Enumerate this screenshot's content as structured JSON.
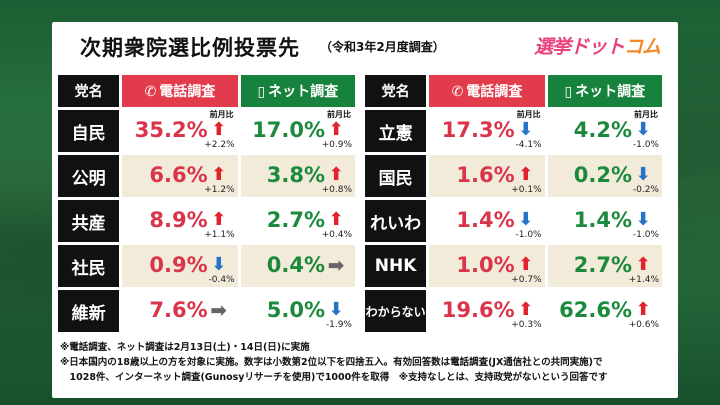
{
  "title": "次期衆院選比例投票先",
  "subtitle": "（令和3年2月度調査）",
  "logo": {
    "main": "選挙ドット",
    "sub": "コム"
  },
  "prev_month_label": "前月比",
  "icons": {
    "phone": "phone-icon",
    "net": "smartphone-icon",
    "up": "arrow-up-icon",
    "down": "arrow-down-icon",
    "flat": "arrow-right-icon"
  },
  "colors": {
    "phone": "#e23b4c",
    "net": "#16823d",
    "up": "#e0242f",
    "down": "#2574c8"
  },
  "chart_data": {
    "type": "table",
    "columns": [
      "党名",
      "電話調査",
      "ネット調査"
    ],
    "left_rows": [
      {
        "party": "自民",
        "phone": "35.2%",
        "phone_dir": "up",
        "phone_delta": "+2.2%",
        "net": "17.0%",
        "net_dir": "up",
        "net_delta": "+0.9%"
      },
      {
        "party": "公明",
        "phone": "6.6%",
        "phone_dir": "up",
        "phone_delta": "+1.2%",
        "net": "3.8%",
        "net_dir": "up",
        "net_delta": "+0.8%"
      },
      {
        "party": "共産",
        "phone": "8.9%",
        "phone_dir": "up",
        "phone_delta": "+1.1%",
        "net": "2.7%",
        "net_dir": "up",
        "net_delta": "+0.4%"
      },
      {
        "party": "社民",
        "phone": "0.9%",
        "phone_dir": "down",
        "phone_delta": "-0.4%",
        "net": "0.4%",
        "net_dir": "flat",
        "net_delta": ""
      },
      {
        "party": "維新",
        "phone": "7.6%",
        "phone_dir": "flat",
        "phone_delta": "",
        "net": "5.0%",
        "net_dir": "down",
        "net_delta": "-1.9%"
      }
    ],
    "right_rows": [
      {
        "party": "立憲",
        "phone": "17.3%",
        "phone_dir": "down",
        "phone_delta": "-4.1%",
        "net": "4.2%",
        "net_dir": "down",
        "net_delta": "-1.0%"
      },
      {
        "party": "国民",
        "phone": "1.6%",
        "phone_dir": "up",
        "phone_delta": "+0.1%",
        "net": "0.2%",
        "net_dir": "down",
        "net_delta": "-0.2%"
      },
      {
        "party": "れいわ",
        "phone": "1.4%",
        "phone_dir": "down",
        "phone_delta": "-1.0%",
        "net": "1.4%",
        "net_dir": "down",
        "net_delta": "-1.0%"
      },
      {
        "party": "NHK",
        "phone": "1.0%",
        "phone_dir": "up",
        "phone_delta": "+0.7%",
        "net": "2.7%",
        "net_dir": "up",
        "net_delta": "+1.4%"
      },
      {
        "party": "わからない",
        "phone": "19.6%",
        "phone_dir": "up",
        "phone_delta": "+0.3%",
        "net": "62.6%",
        "net_dir": "up",
        "net_delta": "+0.6%"
      }
    ]
  },
  "notes": [
    "※電話調査、ネット調査は2月13日(土)・14日(日)に実施",
    "※日本国内の18歳以上の方を対象に実施。数字は小数第2位以下を四捨五入。有効回答数は電話調査(JX通信社との共同実施)で",
    "　1028件、インターネット調査(Gunosyリサーチを使用)で1000件を取得　※支持なしとは、支持政党がないという回答です"
  ]
}
